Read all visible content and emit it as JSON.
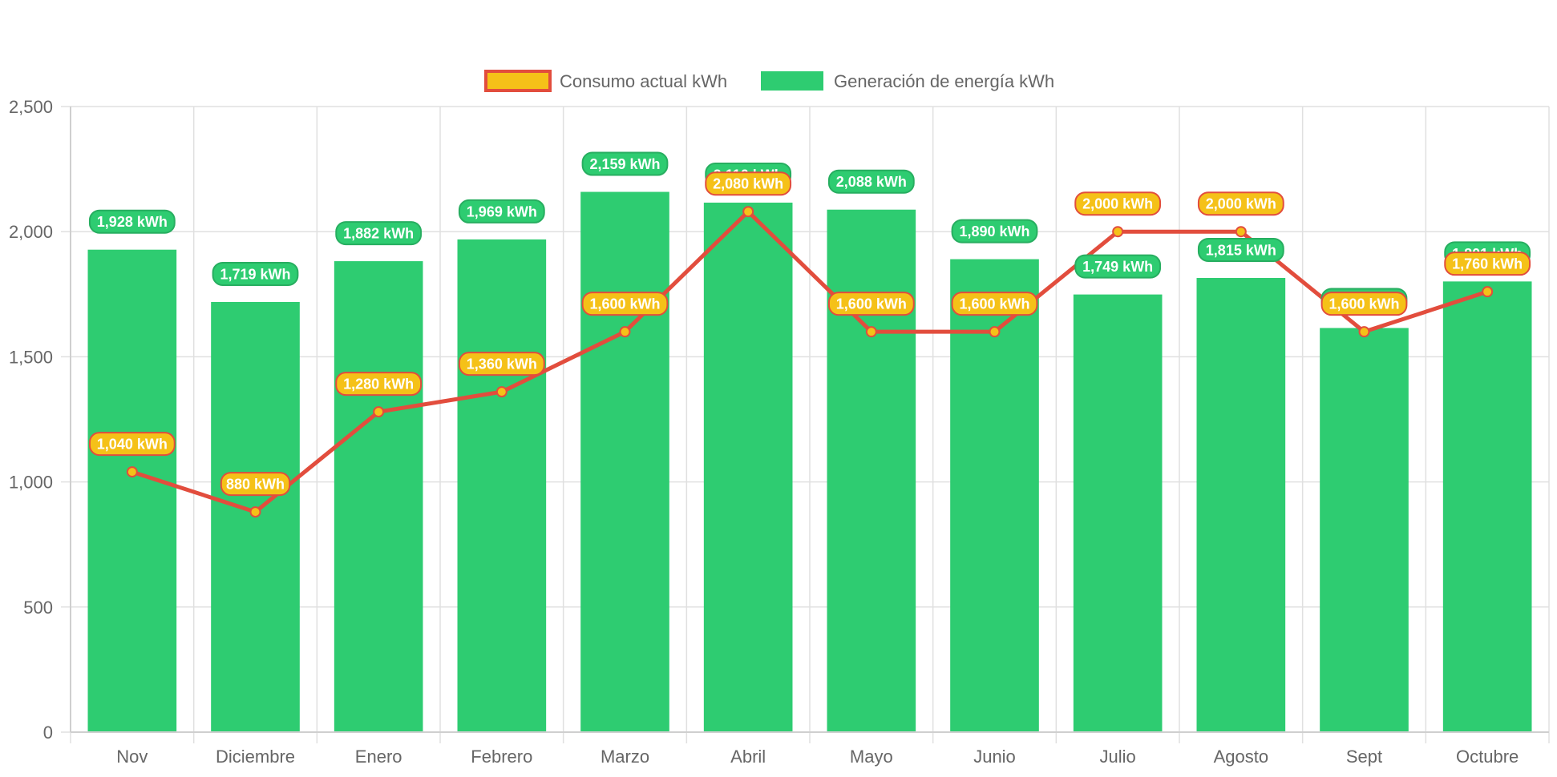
{
  "chart_data": {
    "type": "bar",
    "title": "",
    "xlabel": "",
    "ylabel": "",
    "ylim": [
      0,
      2500
    ],
    "ytick_step": 500,
    "grid": true,
    "legend_position": "top-center",
    "categories": [
      "Nov",
      "Diciembre",
      "Enero",
      "Febrero",
      "Marzo",
      "Abril",
      "Mayo",
      "Junio",
      "Julio",
      "Agosto",
      "Sept",
      "Octubre"
    ],
    "series": [
      {
        "name": "Consumo actual kWh",
        "type": "line",
        "color": "#F5C118",
        "line_color": "#E24D3D",
        "values": [
          1040,
          880,
          1280,
          1360,
          1600,
          2080,
          1600,
          1600,
          2000,
          2000,
          1600,
          1760
        ]
      },
      {
        "name": "Generación de energía kWh",
        "type": "bar",
        "color": "#2ECC71",
        "border_color": "#27AE60",
        "values": [
          1928,
          1719,
          1882,
          1969,
          2159,
          2116,
          2088,
          1890,
          1749,
          1815,
          1615,
          1801
        ]
      }
    ],
    "label_suffix": " kWh"
  }
}
